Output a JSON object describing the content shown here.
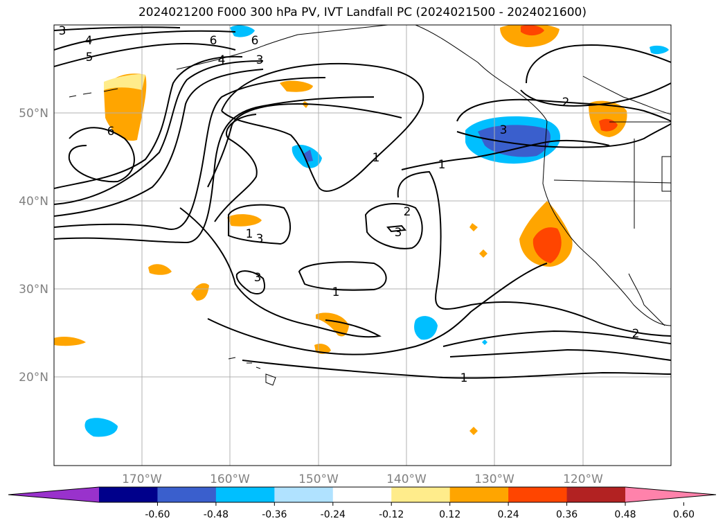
{
  "title": "2024021200 F000 300 hPa PV, IVT Landfall PC (2024021500 - 2024021600)",
  "map": {
    "lat_labels": [
      "50°N",
      "40°N",
      "30°N",
      "20°N"
    ],
    "lon_labels": [
      "170°W",
      "160°W",
      "150°W",
      "140°W",
      "130°W",
      "120°W"
    ],
    "contour_labels": [
      "3",
      "4",
      "5",
      "6",
      "6",
      "4",
      "3",
      "6",
      "3",
      "1",
      "1",
      "2",
      "3",
      "1",
      "3",
      "1",
      "2",
      "2",
      "1",
      "3"
    ]
  },
  "colorbar": {
    "ticks": [
      "-0.60",
      "-0.48",
      "-0.36",
      "-0.24",
      "-0.12",
      "0.12",
      "0.24",
      "0.36",
      "0.48",
      "0.60"
    ],
    "colors": [
      "#9932cc",
      "#00008b",
      "#3a5fcd",
      "#00bfff",
      "#b0e2ff",
      "#ffffff",
      "#ffec8b",
      "#ffa500",
      "#ff4500",
      "#b22222",
      "#ff82ab"
    ]
  }
}
